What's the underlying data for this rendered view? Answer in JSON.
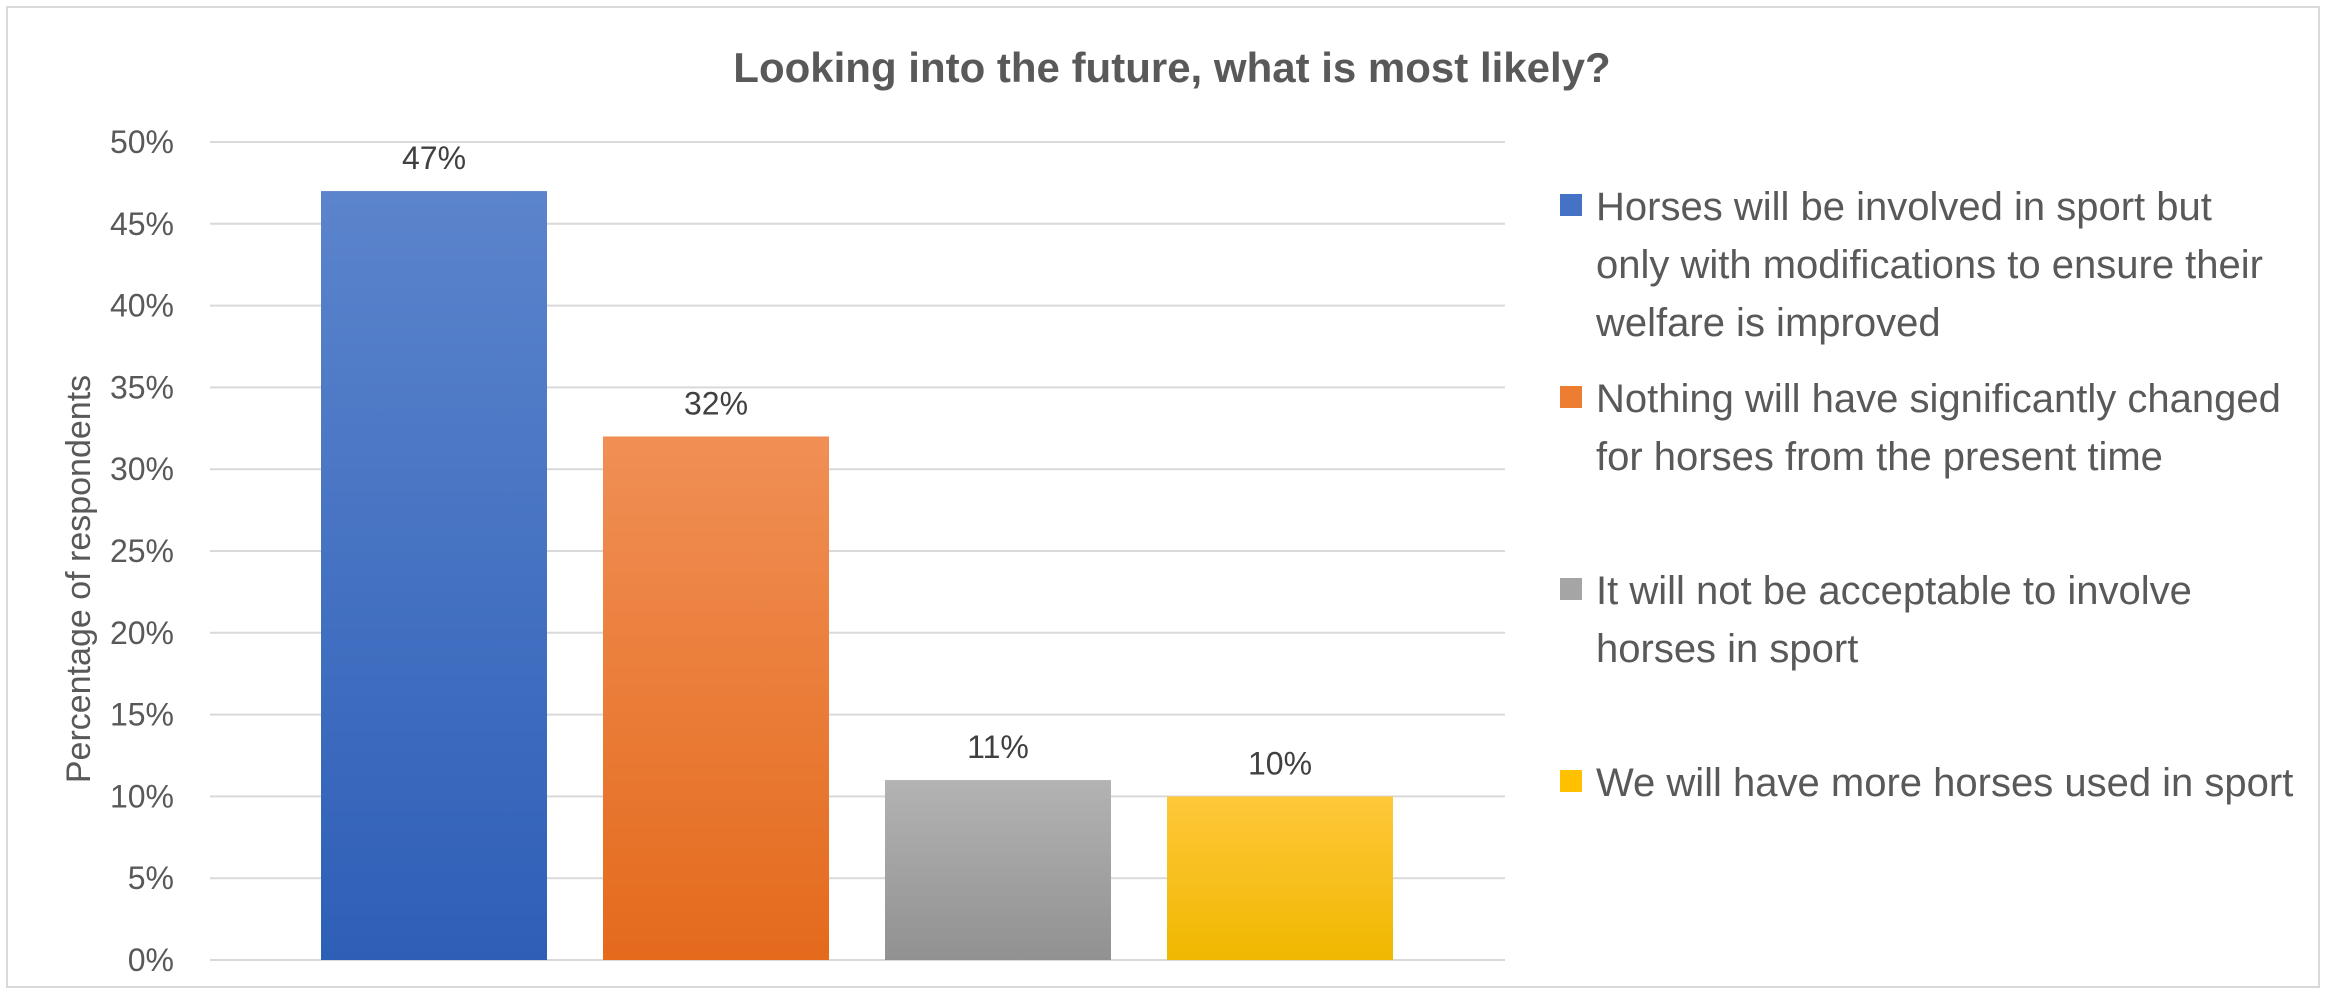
{
  "chart_data": {
    "type": "bar",
    "title": "Looking into the future, what is most likely?",
    "ylabel": "Percentage of respondents",
    "xlabel": "",
    "ylim": [
      0,
      50
    ],
    "ytick_step": 5,
    "ytick_labels": [
      "0%",
      "5%",
      "10%",
      "15%",
      "20%",
      "25%",
      "30%",
      "35%",
      "40%",
      "45%",
      "50%"
    ],
    "grid": true,
    "legend_position": "right",
    "categories": [
      "Horses will be involved in sport but only with modifications to ensure their welfare is improved",
      "Nothing will have significantly changed for horses from the present time",
      "It will not be acceptable to involve horses in sport",
      "We will have more horses used in sport"
    ],
    "values": [
      47,
      32,
      11,
      10
    ],
    "data_labels": [
      "47%",
      "32%",
      "11%",
      "10%"
    ],
    "colors": [
      "#4472c4",
      "#ed7d31",
      "#a5a5a5",
      "#ffc000"
    ]
  }
}
